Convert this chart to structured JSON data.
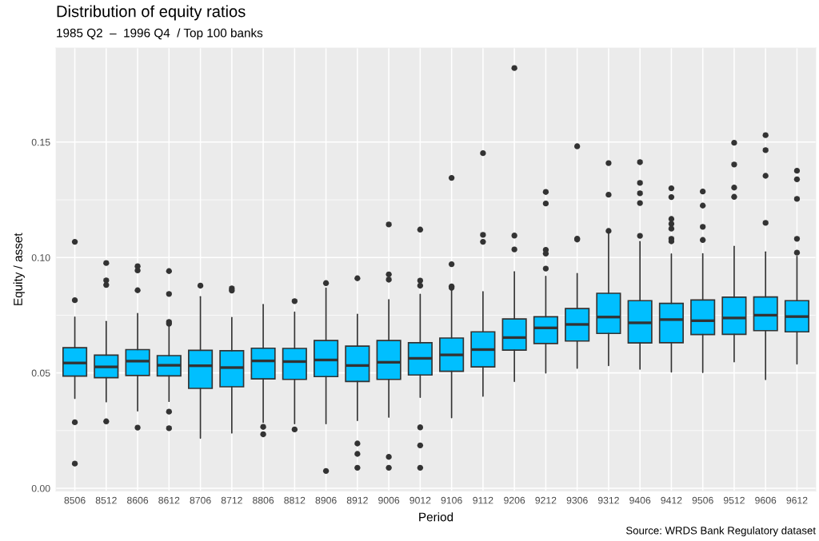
{
  "chart_data": {
    "type": "box",
    "title": "Distribution of equity ratios",
    "subtitle": "1985 Q2  –  1996 Q4  / Top 100 banks",
    "xlabel": "Period",
    "ylabel": "Equity / asset",
    "annotations": [
      "Source: WRDS Bank Regulatory dataset"
    ],
    "categories": [
      "8506",
      "8512",
      "8606",
      "8612",
      "8706",
      "8712",
      "8806",
      "8812",
      "8906",
      "8912",
      "9006",
      "9012",
      "9106",
      "9112",
      "9206",
      "9212",
      "9306",
      "9312",
      "9406",
      "9412",
      "9506",
      "9512",
      "9606",
      "9612"
    ],
    "series": [
      {
        "color": "#00bfff",
        "boxes": [
          {
            "low": 0.039,
            "q1": 0.0486,
            "median": 0.0543,
            "q3": 0.0609,
            "high": 0.0742,
            "outliers": [
              0.1068,
              0.0815,
              0.0286,
              0.0107
            ]
          },
          {
            "low": 0.0375,
            "q1": 0.0479,
            "median": 0.0526,
            "q3": 0.0577,
            "high": 0.0723,
            "outliers": [
              0.0976,
              0.0901,
              0.0881,
              0.029
            ]
          },
          {
            "low": 0.0335,
            "q1": 0.0489,
            "median": 0.0551,
            "q3": 0.0601,
            "high": 0.0757,
            "outliers": [
              0.0962,
              0.0944,
              0.0858,
              0.0263
            ]
          },
          {
            "low": 0.0377,
            "q1": 0.0487,
            "median": 0.0533,
            "q3": 0.0575,
            "high": 0.0705,
            "outliers": [
              0.0941,
              0.0842,
              0.0721,
              0.0713,
              0.0332,
              0.026
            ]
          },
          {
            "low": 0.0217,
            "q1": 0.0433,
            "median": 0.0531,
            "q3": 0.0598,
            "high": 0.083,
            "outliers": [
              0.0878
            ]
          },
          {
            "low": 0.024,
            "q1": 0.044,
            "median": 0.0523,
            "q3": 0.0596,
            "high": 0.074,
            "outliers": [
              0.0866,
              0.0857
            ]
          },
          {
            "low": 0.0286,
            "q1": 0.0474,
            "median": 0.0552,
            "q3": 0.0607,
            "high": 0.0796,
            "outliers": [
              0.0266,
              0.0234
            ]
          },
          {
            "low": 0.028,
            "q1": 0.0472,
            "median": 0.0549,
            "q3": 0.0606,
            "high": 0.0763,
            "outliers": [
              0.0811,
              0.0255
            ]
          },
          {
            "low": 0.028,
            "q1": 0.0484,
            "median": 0.0556,
            "q3": 0.064,
            "high": 0.0867,
            "outliers": [
              0.0889,
              0.0075
            ]
          },
          {
            "low": 0.0294,
            "q1": 0.0463,
            "median": 0.0532,
            "q3": 0.0616,
            "high": 0.0754,
            "outliers": [
              0.091,
              0.0194,
              0.0149,
              0.0089
            ]
          },
          {
            "low": 0.0308,
            "q1": 0.0472,
            "median": 0.0546,
            "q3": 0.064,
            "high": 0.0817,
            "outliers": [
              0.1143,
              0.0927,
              0.0904,
              0.0136,
              0.0089
            ]
          },
          {
            "low": 0.0394,
            "q1": 0.0491,
            "median": 0.0563,
            "q3": 0.0631,
            "high": 0.084,
            "outliers": [
              0.1121,
              0.09,
              0.0878,
              0.0264,
              0.0186,
              0.0089
            ]
          },
          {
            "low": 0.0306,
            "q1": 0.0507,
            "median": 0.0578,
            "q3": 0.0651,
            "high": 0.0858,
            "outliers": [
              0.1345,
              0.0971,
              0.0875,
              0.0869
            ]
          },
          {
            "low": 0.0399,
            "q1": 0.0526,
            "median": 0.0601,
            "q3": 0.0678,
            "high": 0.0852,
            "outliers": [
              0.1452,
              0.1098,
              0.1068
            ]
          },
          {
            "low": 0.0463,
            "q1": 0.0599,
            "median": 0.0653,
            "q3": 0.0734,
            "high": 0.0938,
            "outliers": [
              0.1821,
              0.1095,
              0.1035
            ]
          },
          {
            "low": 0.05,
            "q1": 0.0627,
            "median": 0.0695,
            "q3": 0.0743,
            "high": 0.0918,
            "outliers": [
              0.1284,
              0.1234,
              0.1033,
              0.1017,
              0.0952
            ]
          },
          {
            "low": 0.052,
            "q1": 0.0638,
            "median": 0.071,
            "q3": 0.0779,
            "high": 0.093,
            "outliers": [
              0.1482,
              0.1082,
              0.1078
            ]
          },
          {
            "low": 0.0532,
            "q1": 0.0671,
            "median": 0.0742,
            "q3": 0.0845,
            "high": 0.1103,
            "outliers": [
              0.1409,
              0.1272,
              0.1115
            ]
          },
          {
            "low": 0.0516,
            "q1": 0.063,
            "median": 0.0717,
            "q3": 0.0813,
            "high": 0.1069,
            "outliers": [
              0.1413,
              0.1323,
              0.1278,
              0.1236,
              0.1094
            ]
          },
          {
            "low": 0.0504,
            "q1": 0.0631,
            "median": 0.0731,
            "q3": 0.0801,
            "high": 0.1015,
            "outliers": [
              0.13,
              0.1262,
              0.1167,
              0.1146,
              0.1125,
              0.1081,
              0.107
            ]
          },
          {
            "low": 0.0502,
            "q1": 0.0666,
            "median": 0.0726,
            "q3": 0.0816,
            "high": 0.1016,
            "outliers": [
              0.1286,
              0.1225,
              0.1133,
              0.1076
            ]
          },
          {
            "low": 0.0548,
            "q1": 0.0667,
            "median": 0.0738,
            "q3": 0.0828,
            "high": 0.1048,
            "outliers": [
              0.1497,
              0.1403,
              0.1303,
              0.1263
            ]
          },
          {
            "low": 0.0471,
            "q1": 0.0683,
            "median": 0.075,
            "q3": 0.0829,
            "high": 0.1024,
            "outliers": [
              0.153,
              0.1465,
              0.1354,
              0.115
            ]
          },
          {
            "low": 0.0539,
            "q1": 0.0678,
            "median": 0.0744,
            "q3": 0.0813,
            "high": 0.1005,
            "outliers": [
              0.1376,
              0.1339,
              0.1254,
              0.1081,
              0.1021
            ]
          }
        ]
      }
    ],
    "ylim": [
      -0.0012,
      0.1908
    ],
    "yticks": [
      {
        "value": 0,
        "label": "0.00"
      },
      0.05,
      {
        "value": 0.1,
        "label": "0.10"
      },
      0.15
    ],
    "grid": true
  }
}
